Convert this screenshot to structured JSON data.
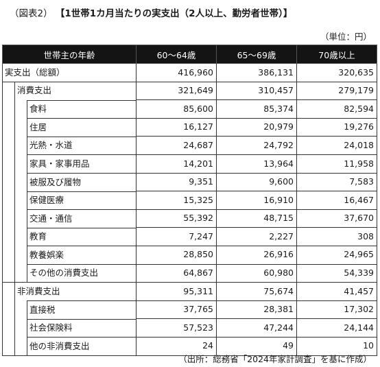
{
  "title": {
    "figure_label": "（図表2）",
    "main": "【1世帯1カ月当たりの実支出（2人以上、勤労者世帯）】"
  },
  "unit_note": "（単位：円）",
  "table": {
    "headers": [
      "世帯主の年齢",
      "60～64歳",
      "65～69歳",
      "70歳以上"
    ],
    "rows": [
      {
        "label": "実支出（総額）",
        "level": 0,
        "values": [
          "416,960",
          "386,131",
          "320,635"
        ]
      },
      {
        "label": "消費支出",
        "level": 1,
        "values": [
          "321,649",
          "310,457",
          "279,179"
        ]
      },
      {
        "label": "食料",
        "level": 2,
        "values": [
          "85,600",
          "85,374",
          "82,594"
        ]
      },
      {
        "label": "住居",
        "level": 2,
        "values": [
          "16,127",
          "20,979",
          "19,276"
        ]
      },
      {
        "label": "光熱・水道",
        "level": 2,
        "values": [
          "24,687",
          "24,792",
          "24,018"
        ]
      },
      {
        "label": "家具・家事用品",
        "level": 2,
        "values": [
          "14,201",
          "13,964",
          "11,958"
        ]
      },
      {
        "label": "被服及び履物",
        "level": 2,
        "values": [
          "9,351",
          "9,600",
          "7,583"
        ]
      },
      {
        "label": "保健医療",
        "level": 2,
        "values": [
          "15,325",
          "16,910",
          "16,467"
        ]
      },
      {
        "label": "交通・通信",
        "level": 2,
        "values": [
          "55,392",
          "48,715",
          "37,670"
        ]
      },
      {
        "label": "教育",
        "level": 2,
        "values": [
          "7,247",
          "2,227",
          "308"
        ]
      },
      {
        "label": "教養娯楽",
        "level": 2,
        "values": [
          "28,850",
          "26,916",
          "24,965"
        ]
      },
      {
        "label": "その他の消費支出",
        "level": 2,
        "values": [
          "64,867",
          "60,980",
          "54,339"
        ]
      },
      {
        "label": "非消費支出",
        "level": 1,
        "values": [
          "95,311",
          "75,674",
          "41,457"
        ]
      },
      {
        "label": "直接税",
        "level": 2,
        "values": [
          "37,765",
          "28,381",
          "17,302"
        ]
      },
      {
        "label": "社会保険料",
        "level": 2,
        "values": [
          "57,523",
          "47,244",
          "24,144"
        ]
      },
      {
        "label": "他の非消費支出",
        "level": 2,
        "values": [
          "24",
          "49",
          "10"
        ]
      }
    ]
  },
  "source_note": "（出所：総務省「2024年家計調査」を基に作成）"
}
